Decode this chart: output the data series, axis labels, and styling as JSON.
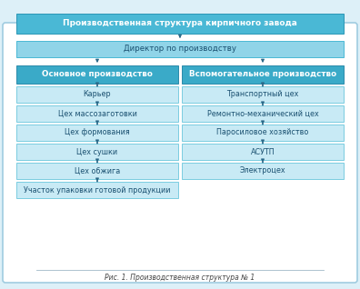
{
  "title": "Производственная структура кирпичного завода",
  "subtitle": "Рис. 1. Производственная структура № 1",
  "director": "Директор по производству",
  "left_header": "Основное производство",
  "right_header": "Вспомогательное производство",
  "left_items": [
    "Карьер",
    "Цех массозаготовки",
    "Цех формования",
    "Цех сушки",
    "Цех обжига",
    "Участок упаковки готовой продукции"
  ],
  "right_items": [
    "Транспортный цех",
    "Ремонтно-механический цех",
    "Паросиловое хозяйство",
    "АСУТП",
    "Электроцех"
  ],
  "color_title_bg": "#4ab8d5",
  "color_title_border": "#2a96b5",
  "color_dir_bg": "#90d4e8",
  "color_dir_border": "#4ab8d5",
  "color_header_bg": "#3aaac8",
  "color_header_border": "#2a8aaa",
  "color_item_bg": "#c8eaf5",
  "color_item_border": "#7acce0",
  "color_outer_bg": "white",
  "color_outer_border": "#a0cce0",
  "color_fig_bg": "#ddf0f8",
  "color_text_dark": "#1a5070",
  "color_text_white": "white",
  "color_arrow": "#2a6888",
  "color_caption": "#444444",
  "color_caption_line": "#a0b8c8",
  "title_fontsize": 6.5,
  "dir_fontsize": 6.2,
  "header_fontsize": 6.3,
  "item_fontsize": 5.8,
  "caption_fontsize": 5.5
}
